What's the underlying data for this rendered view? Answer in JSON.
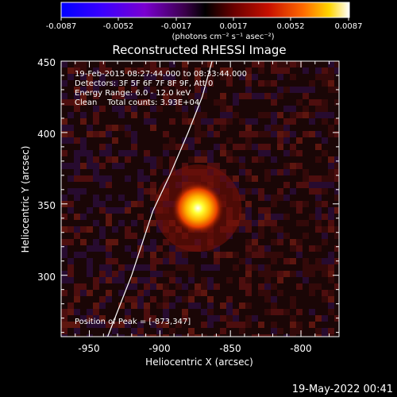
{
  "chart_data": {
    "type": "heatmap",
    "title": "Reconstructed RHESSI Image",
    "xlabel": "Heliocentric X (arcsec)",
    "ylabel": "Heliocentric Y (arcsec)",
    "xlim": [
      -970,
      -773
    ],
    "ylim": [
      257,
      450
    ],
    "x_ticks": [
      -950,
      -900,
      -850,
      -800
    ],
    "y_ticks": [
      300,
      350,
      400,
      450
    ],
    "colorbar": {
      "min": -0.0087,
      "max": 0.0087,
      "ticks": [
        "-0.0087",
        "-0.0052",
        "-0.0017",
        "0.0017",
        "0.0052",
        "0.0087"
      ],
      "unit_label": "(photons cm⁻² s⁻¹ asec⁻²)"
    },
    "annotations": [
      "19-Feb-2015 08:27:44.000 to 08:33:44.000",
      "Detectors: 3F 5F 6F 7F 8F 9F, Att 0",
      "Energy Range: 6.0 - 12.0 keV",
      "Clean    Total counts: 3.93E+04"
    ],
    "peak_label": "Position of Peak = [-873,347]",
    "peak": {
      "x": -873,
      "y": 347
    },
    "limb_curve": [
      [
        -937,
        257
      ],
      [
        -920,
        300
      ],
      [
        -905,
        345
      ],
      [
        -893,
        370
      ],
      [
        -880,
        400
      ],
      [
        -870,
        425
      ],
      [
        -863,
        450
      ]
    ]
  },
  "footer_timestamp": "19-May-2022 00:41"
}
